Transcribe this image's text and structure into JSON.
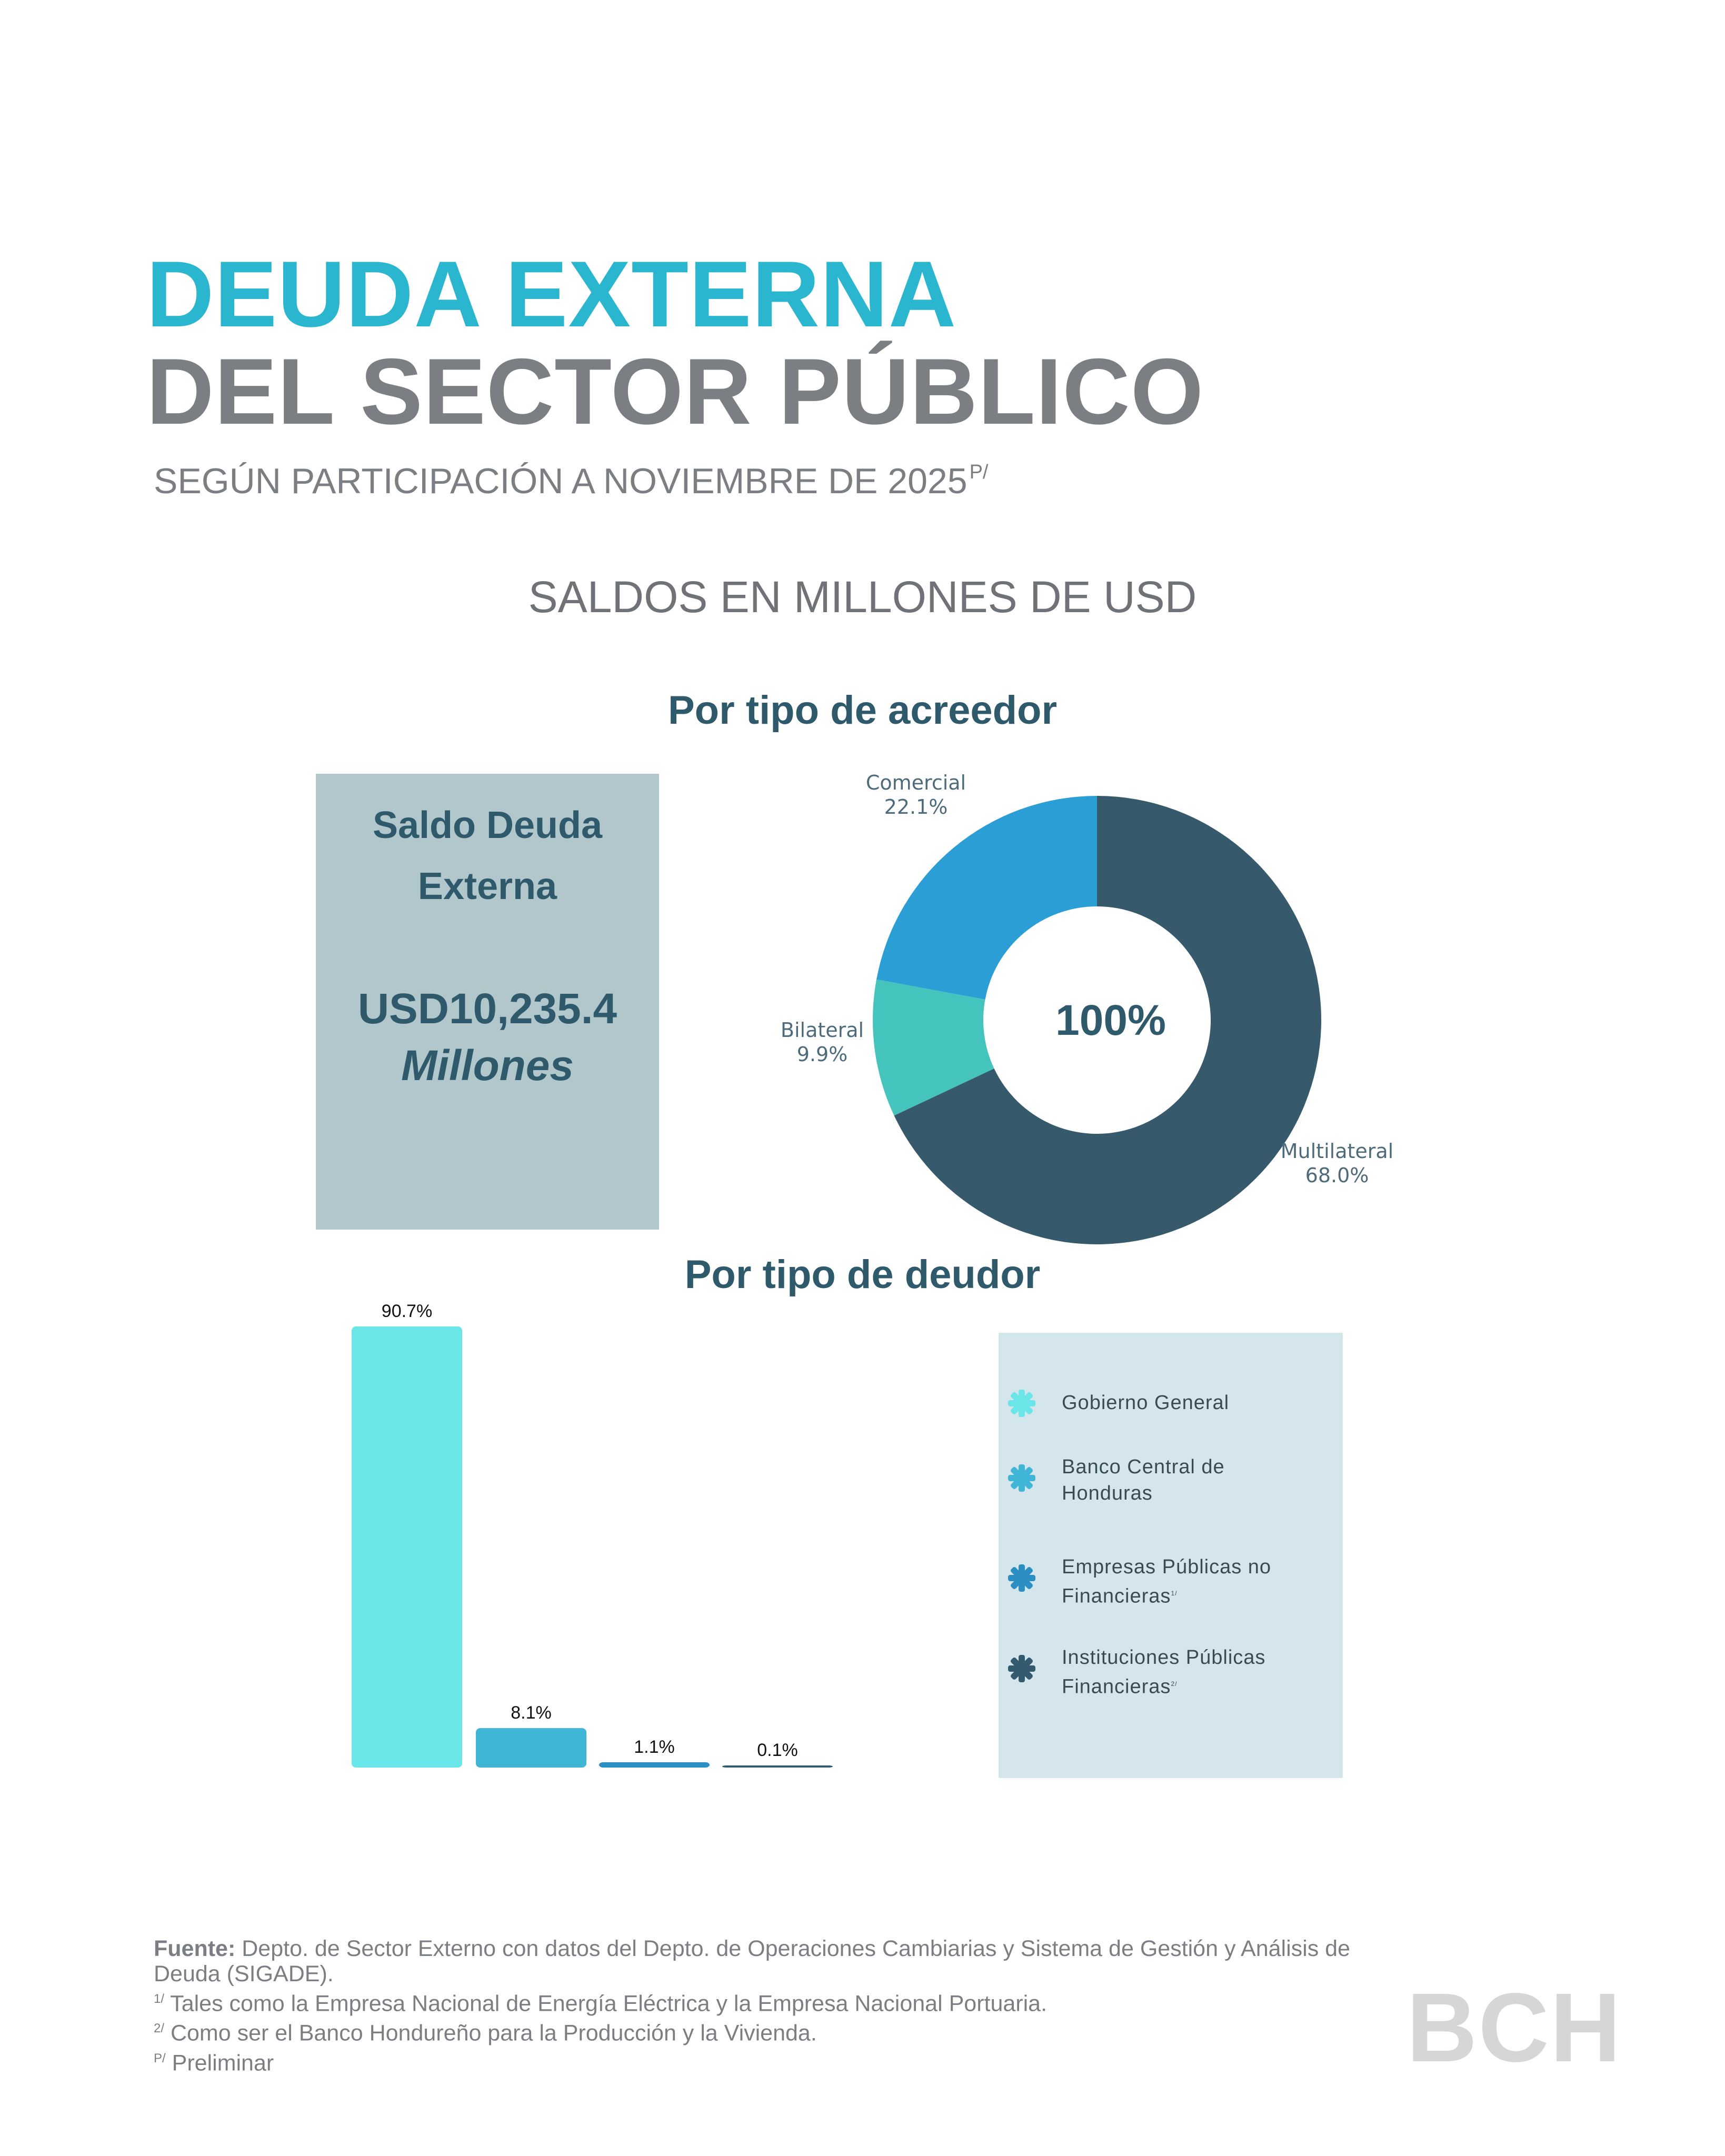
{
  "header": {
    "title_line1": "DEUDA EXTERNA",
    "title_line2": "DEL SECTOR PÚBLICO",
    "subtitle": "SEGÚN PARTICIPACIÓN A NOVIEMBRE DE 2025",
    "subtitle_note": "P/",
    "units": "SALDOS EN MILLONES DE USD"
  },
  "acreedor": {
    "heading": "Por tipo de acreedor",
    "saldo_label": "Saldo Deuda Externa",
    "saldo_value": "USD10,235.4",
    "saldo_unit": "Millones",
    "center_label": "100%"
  },
  "deudor": {
    "heading": "Por tipo de deudor",
    "legend": [
      {
        "label": "Gobierno General",
        "note": "",
        "color": "#6ae5e8"
      },
      {
        "label": "Banco Central de Honduras",
        "note": "",
        "color": "#3fb6d6"
      },
      {
        "label": "Empresas Públicas no Financieras",
        "note": "1/",
        "color": "#2c8fc4"
      },
      {
        "label": "Instituciones Públicas Financieras",
        "note": "2/",
        "color": "#345a6d"
      }
    ]
  },
  "colors": {
    "multilateral": "#365a6c",
    "comercial": "#2a9ed5",
    "bilateral": "#45c3bd",
    "title_accent": "#2bb6cf",
    "title_grey": "#7b7e82"
  },
  "chart_data": [
    {
      "type": "pie",
      "title": "Por tipo de acreedor",
      "donut": true,
      "center_text": "100%",
      "slices": [
        {
          "label": "Multilateral",
          "value": 68.0,
          "display": "68.0%",
          "color": "#365a6c"
        },
        {
          "label": "Bilateral",
          "value": 9.9,
          "display": "9.9%",
          "color": "#45c3bd"
        },
        {
          "label": "Comercial",
          "value": 22.1,
          "display": "22.1%",
          "color": "#2a9ed5"
        }
      ]
    },
    {
      "type": "bar",
      "title": "Por tipo de deudor",
      "categories": [
        "Gobierno General",
        "Banco Central de Honduras",
        "Empresas Públicas no Financieras",
        "Instituciones Públicas Financieras"
      ],
      "values": [
        90.7,
        8.1,
        1.1,
        0.1
      ],
      "labels": [
        "90.7%",
        "8.1%",
        "1.1%",
        "0.1%"
      ],
      "colors": [
        "#6ae5e8",
        "#3fb6d6",
        "#2c8fc4",
        "#345a6d"
      ],
      "ylim": [
        0,
        90.7
      ]
    }
  ],
  "footer": {
    "source_label": "Fuente:",
    "source_text": "Depto. de Sector Externo con datos del Depto. de Operaciones Cambiarias y Sistema de Gestión y Análisis de Deuda (SIGADE).",
    "note1_mark": "1/",
    "note1": "Tales como la Empresa Nacional de Energía Eléctrica y la Empresa Nacional Portuaria.",
    "note2_mark": "2/",
    "note2": "Como ser el Banco Hondureño para la Producción y la Vivienda.",
    "noteP_mark": "P/",
    "noteP": "Preliminar",
    "logo": "BCH"
  }
}
